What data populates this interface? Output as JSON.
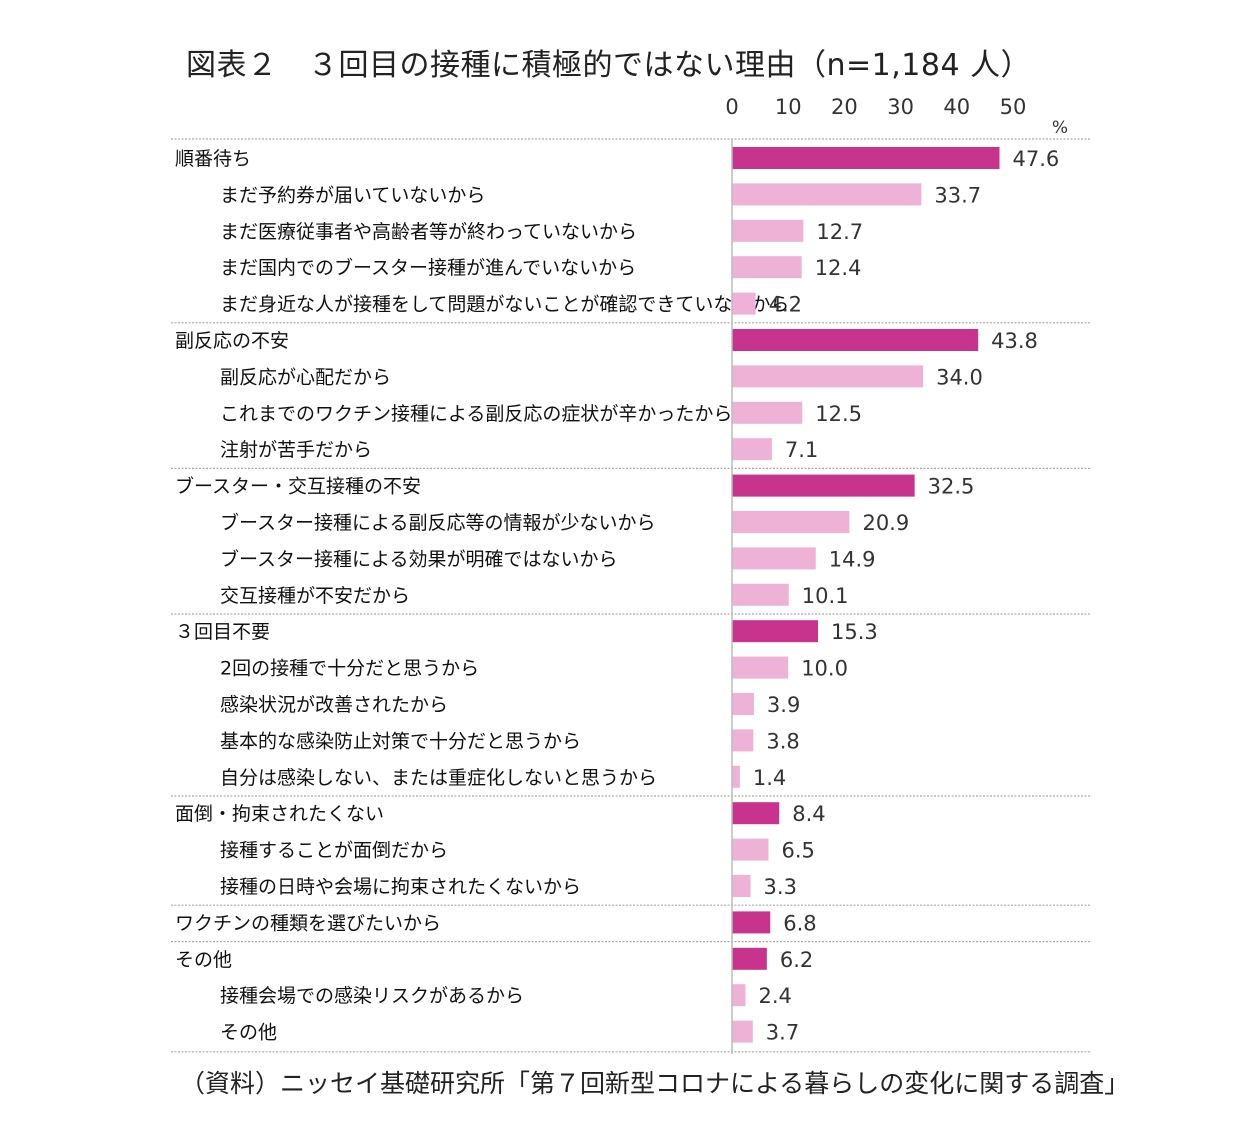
{
  "title": "図表２　３回目の接種に積極的ではない理由（n=1,184 人）",
  "source": "（資料）ニッセイ基礎研究所「第７回新型コロナによる暮らしの変化に関する調査」",
  "colors": {
    "group": "#c8338e",
    "item": "#eeb2d6",
    "divider": "#aaaaaa"
  },
  "chart_data": {
    "type": "bar",
    "orientation": "horizontal",
    "xlabel": "%",
    "xlim": [
      0,
      50
    ],
    "xticks": [
      0,
      10,
      20,
      30,
      40,
      50
    ],
    "grid": false,
    "groups": [
      {
        "label": "順番待ち",
        "value": 47.6,
        "items": [
          {
            "label": "まだ予約券が届いていないから",
            "value": 33.7
          },
          {
            "label": "まだ医療従事者や高齢者等が終わっていないから",
            "value": 12.7
          },
          {
            "label": "まだ国内でのブースター接種が進んでいないから",
            "value": 12.4
          },
          {
            "label": "まだ身近な人が接種をして問題がないことが確認できていないから",
            "value": 4.2
          }
        ]
      },
      {
        "label": "副反応の不安",
        "value": 43.8,
        "items": [
          {
            "label": "副反応が心配だから",
            "value": 34.0
          },
          {
            "label": "これまでのワクチン接種による副反応の症状が辛かったから",
            "value": 12.5
          },
          {
            "label": "注射が苦手だから",
            "value": 7.1
          }
        ]
      },
      {
        "label": "ブースター・交互接種の不安",
        "value": 32.5,
        "items": [
          {
            "label": "ブースター接種による副反応等の情報が少ないから",
            "value": 20.9
          },
          {
            "label": "ブースター接種による効果が明確ではないから",
            "value": 14.9
          },
          {
            "label": "交互接種が不安だから",
            "value": 10.1
          }
        ]
      },
      {
        "label": "３回目不要",
        "value": 15.3,
        "items": [
          {
            "label": "2回の接種で十分だと思うから",
            "value": 10.0
          },
          {
            "label": "感染状況が改善されたから",
            "value": 3.9
          },
          {
            "label": "基本的な感染防止対策で十分だと思うから",
            "value": 3.8
          },
          {
            "label": "自分は感染しない、または重症化しないと思うから",
            "value": 1.4
          }
        ]
      },
      {
        "label": "面倒・拘束されたくない",
        "value": 8.4,
        "items": [
          {
            "label": "接種することが面倒だから",
            "value": 6.5
          },
          {
            "label": "接種の日時や会場に拘束されたくないから",
            "value": 3.3
          }
        ]
      },
      {
        "label": "ワクチンの種類を選びたいから",
        "value": 6.8,
        "items": []
      },
      {
        "label": "その他",
        "value": 6.2,
        "items": [
          {
            "label": "接種会場での感染リスクがあるから",
            "value": 2.4
          },
          {
            "label": "その他",
            "value": 3.7
          }
        ]
      }
    ]
  }
}
